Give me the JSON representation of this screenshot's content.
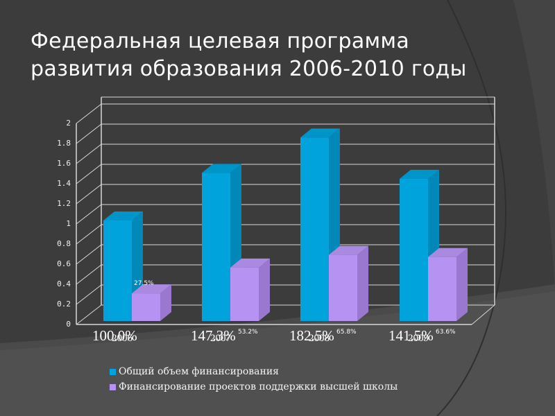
{
  "title": {
    "line1": "Федеральная целевая программа",
    "line2": "развития образования 2006-2010 годы"
  },
  "colors": {
    "background": "#3c3c3c",
    "series1": "#00a3dc",
    "series1_side": "#0088b8",
    "series1_top": "#0095c8",
    "series2": "#b693f2",
    "series2_side": "#9a78d0",
    "series2_top": "#a98ae0",
    "grid": "#d8d8d8"
  },
  "chart_data": {
    "type": "bar",
    "title": "Федеральная целевая программа развития образования 2006-2010 годы",
    "categories": [
      "2006",
      "2007",
      "2008",
      "2009"
    ],
    "series": [
      {
        "name": "Общий объем финансирования",
        "values": [
          1.0,
          1.473,
          1.825,
          1.415
        ],
        "labels": [
          "100.0%",
          "147.3%",
          "182.5%",
          "141.5%"
        ]
      },
      {
        "name": "Финансирование проектов поддержки высшей школы",
        "values": [
          0.275,
          0.532,
          0.658,
          0.636
        ],
        "labels": [
          "27.5%",
          "53.2%",
          "65.8%",
          "63.6%"
        ]
      }
    ],
    "xlabel": "",
    "ylabel": "",
    "ylim": [
      0,
      2
    ],
    "yticks": [
      "0",
      "0.2",
      "0.4",
      "0.6",
      "0.8",
      "1",
      "1.2",
      "1.4",
      "1.6",
      "1.8",
      "2"
    ],
    "grid": true,
    "legend_position": "bottom",
    "style": "3d-clustered-column"
  },
  "legend": [
    {
      "label": "Общий объем финансирования"
    },
    {
      "label": "Финансирование проектов поддержки высшей школы"
    }
  ]
}
